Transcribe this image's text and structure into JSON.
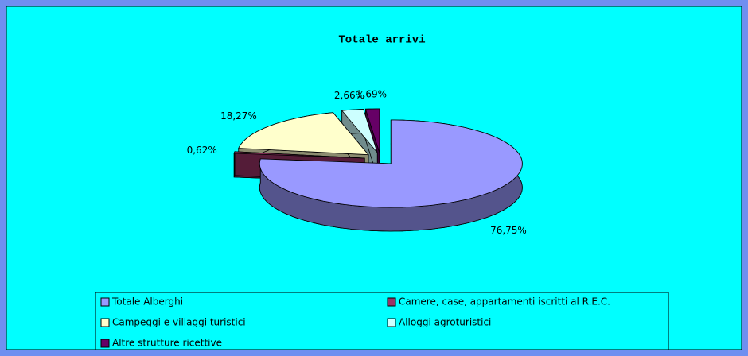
{
  "chart_data": {
    "type": "pie",
    "title": "Totale arrivi",
    "categories": [
      "Totale Alberghi",
      "Camere, case, appartamenti iscritti al R.E.C.",
      "Campeggi e villaggi turistici",
      "Alloggi agroturistici",
      "Altre strutture ricettive"
    ],
    "values": [
      76.75,
      0.62,
      18.27,
      2.66,
      1.69
    ],
    "value_labels": [
      "76,75%",
      "0,62%",
      "18,27%",
      "2,66%",
      "1,69%"
    ],
    "colors": [
      "#9999ff",
      "#993366",
      "#ffffcc",
      "#ccffff",
      "#660066"
    ]
  }
}
